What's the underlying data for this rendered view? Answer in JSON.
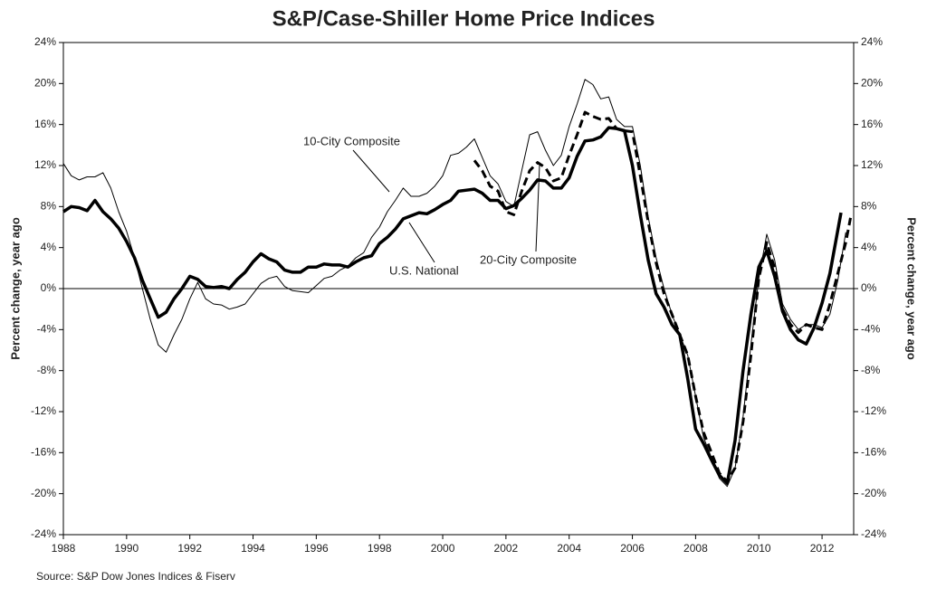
{
  "chart_data": {
    "type": "line",
    "title": "S&P/Case-Shiller Home Price Indices",
    "ylabel": "Percent change, year ago",
    "y2label": "Percent change, year ago",
    "source": "Source: S&P Dow Jones Indices & Fiserv",
    "xlim": [
      1988,
      2013
    ],
    "xticks": [
      1988,
      1990,
      1992,
      1994,
      1996,
      1998,
      2000,
      2002,
      2004,
      2006,
      2008,
      2010,
      2012
    ],
    "ylim": [
      -24,
      24
    ],
    "yticks": [
      {
        "value": -24,
        "label": "-24%"
      },
      {
        "value": -20,
        "label": "-20%"
      },
      {
        "value": -16,
        "label": "-16%"
      },
      {
        "value": -12,
        "label": "-12%"
      },
      {
        "value": -8,
        "label": "-8%"
      },
      {
        "value": -4,
        "label": "-4%"
      },
      {
        "value": 0,
        "label": "0%"
      },
      {
        "value": 4,
        "label": "4%"
      },
      {
        "value": 8,
        "label": "8%"
      },
      {
        "value": 12,
        "label": "12%"
      },
      {
        "value": 16,
        "label": "16%"
      },
      {
        "value": 20,
        "label": "20%"
      },
      {
        "value": 24,
        "label": "24%"
      }
    ],
    "y2lim": [
      -24,
      24
    ],
    "y2ticks": [
      {
        "value": -24,
        "label": "-24%"
      },
      {
        "value": -20,
        "label": "-20%"
      },
      {
        "value": -16,
        "label": "-16%"
      },
      {
        "value": -12,
        "label": "-12%"
      },
      {
        "value": -8,
        "label": "-8%"
      },
      {
        "value": -4,
        "label": "-4%"
      },
      {
        "value": 0,
        "label": "0%"
      },
      {
        "value": 4,
        "label": "4%"
      },
      {
        "value": 8,
        "label": "8%"
      },
      {
        "value": 12,
        "label": "12%"
      },
      {
        "value": 16,
        "label": "16%"
      },
      {
        "value": 20,
        "label": "20%"
      },
      {
        "value": 24,
        "label": "24%"
      }
    ],
    "series": [
      {
        "name": "U.S. National",
        "color": "#000000",
        "style": "thick",
        "x": [
          1988.0,
          1988.25,
          1988.5,
          1988.75,
          1989.0,
          1989.25,
          1989.5,
          1989.75,
          1990.0,
          1990.25,
          1990.5,
          1990.75,
          1991.0,
          1991.25,
          1991.5,
          1991.75,
          1992.0,
          1992.25,
          1992.5,
          1992.75,
          1993.0,
          1993.25,
          1993.5,
          1993.75,
          1994.0,
          1994.25,
          1994.5,
          1994.75,
          1995.0,
          1995.25,
          1995.5,
          1995.75,
          1996.0,
          1996.25,
          1996.5,
          1996.75,
          1997.0,
          1997.25,
          1997.5,
          1997.75,
          1998.0,
          1998.25,
          1998.5,
          1998.75,
          1999.0,
          1999.25,
          1999.5,
          1999.75,
          2000.0,
          2000.25,
          2000.5,
          2000.75,
          2001.0,
          2001.25,
          2001.5,
          2001.75,
          2002.0,
          2002.25,
          2002.5,
          2002.75,
          2003.0,
          2003.25,
          2003.5,
          2003.75,
          2004.0,
          2004.25,
          2004.5,
          2004.75,
          2005.0,
          2005.25,
          2005.5,
          2005.75,
          2006.0,
          2006.25,
          2006.5,
          2006.75,
          2007.0,
          2007.25,
          2007.5,
          2007.75,
          2008.0,
          2008.25,
          2008.5,
          2008.75,
          2009.0,
          2009.25,
          2009.5,
          2009.75,
          2010.0,
          2010.25,
          2010.5,
          2010.75,
          2011.0,
          2011.25,
          2011.5,
          2011.75,
          2012.0,
          2012.25,
          2012.6
        ],
        "values": [
          7.5,
          8.0,
          7.9,
          7.6,
          8.6,
          7.5,
          6.8,
          5.9,
          4.6,
          3.0,
          0.8,
          -1.0,
          -2.8,
          -2.3,
          -1.0,
          0.0,
          1.2,
          0.9,
          0.2,
          0.1,
          0.2,
          0.0,
          0.9,
          1.6,
          2.6,
          3.4,
          2.9,
          2.6,
          1.8,
          1.6,
          1.6,
          2.1,
          2.1,
          2.4,
          2.3,
          2.3,
          2.1,
          2.6,
          3.0,
          3.2,
          4.4,
          5.0,
          5.8,
          6.8,
          7.1,
          7.4,
          7.3,
          7.7,
          8.2,
          8.6,
          9.5,
          9.6,
          9.7,
          9.3,
          8.6,
          8.6,
          7.8,
          8.1,
          8.8,
          9.6,
          10.6,
          10.5,
          9.8,
          9.8,
          10.8,
          12.9,
          14.4,
          14.5,
          14.8,
          15.7,
          15.6,
          15.4,
          12.0,
          7.2,
          2.8,
          -0.5,
          -1.8,
          -3.5,
          -4.5,
          -8.8,
          -13.7,
          -15.1,
          -16.7,
          -18.2,
          -19.0,
          -14.8,
          -8.0,
          -2.5,
          2.1,
          3.7,
          1.2,
          -2.2,
          -4.0,
          -5.0,
          -5.4,
          -3.8,
          -1.4,
          1.5,
          7.4
        ]
      },
      {
        "name": "10-City Composite",
        "color": "#000000",
        "style": "thin",
        "x": [
          1988.0,
          1988.25,
          1988.5,
          1988.75,
          1989.0,
          1989.25,
          1989.5,
          1989.75,
          1990.0,
          1990.25,
          1990.5,
          1990.75,
          1991.0,
          1991.25,
          1991.5,
          1991.75,
          1992.0,
          1992.25,
          1992.5,
          1992.75,
          1993.0,
          1993.25,
          1993.5,
          1993.75,
          1994.0,
          1994.25,
          1994.5,
          1994.75,
          1995.0,
          1995.25,
          1995.5,
          1995.75,
          1996.0,
          1996.25,
          1996.5,
          1996.75,
          1997.0,
          1997.25,
          1997.5,
          1997.75,
          1998.0,
          1998.25,
          1998.5,
          1998.75,
          1999.0,
          1999.25,
          1999.5,
          1999.75,
          2000.0,
          2000.25,
          2000.5,
          2000.75,
          2001.0,
          2001.25,
          2001.5,
          2001.75,
          2002.0,
          2002.25,
          2002.5,
          2002.75,
          2003.0,
          2003.25,
          2003.5,
          2003.75,
          2004.0,
          2004.25,
          2004.5,
          2004.75,
          2005.0,
          2005.25,
          2005.5,
          2005.75,
          2006.0,
          2006.25,
          2006.5,
          2006.75,
          2007.0,
          2007.25,
          2007.5,
          2007.75,
          2008.0,
          2008.25,
          2008.5,
          2008.75,
          2009.0,
          2009.25,
          2009.5,
          2009.75,
          2010.0,
          2010.25,
          2010.5,
          2010.75,
          2011.0,
          2011.25,
          2011.5,
          2011.75,
          2012.0,
          2012.25,
          2012.5,
          2012.75
        ],
        "values": [
          12.2,
          11.0,
          10.6,
          10.9,
          10.9,
          11.3,
          9.8,
          7.5,
          5.6,
          3.0,
          0.0,
          -3.0,
          -5.5,
          -6.2,
          -4.5,
          -3.0,
          -1.0,
          0.6,
          -1.0,
          -1.5,
          -1.6,
          -2.0,
          -1.8,
          -1.5,
          -0.5,
          0.5,
          1.0,
          1.2,
          0.2,
          -0.2,
          -0.3,
          -0.4,
          0.3,
          1.0,
          1.2,
          1.8,
          2.2,
          3.0,
          3.5,
          5.0,
          6.0,
          7.5,
          8.6,
          9.8,
          9.0,
          9.0,
          9.3,
          10.0,
          11.0,
          13.0,
          13.2,
          13.8,
          14.6,
          12.8,
          11.0,
          10.2,
          8.5,
          8.0,
          11.5,
          15.0,
          15.3,
          13.5,
          12.0,
          13.0,
          15.8,
          18.0,
          20.4,
          19.9,
          18.5,
          18.7,
          16.5,
          15.8,
          15.8,
          12.0,
          7.0,
          3.0,
          0.0,
          -2.5,
          -4.5,
          -6.5,
          -10.5,
          -14.5,
          -16.5,
          -18.5,
          -19.3,
          -17.5,
          -12.5,
          -5.5,
          1.0,
          5.3,
          2.8,
          -1.5,
          -3.0,
          -4.0,
          -3.5,
          -3.5,
          -3.8,
          -2.5,
          0.8,
          5.5
        ]
      },
      {
        "name": "20-City Composite",
        "color": "#000000",
        "style": "dashed",
        "x": [
          2001.0,
          2001.25,
          2001.5,
          2001.75,
          2002.0,
          2002.25,
          2002.5,
          2002.75,
          2003.0,
          2003.25,
          2003.5,
          2003.75,
          2004.0,
          2004.25,
          2004.5,
          2004.75,
          2005.0,
          2005.25,
          2005.5,
          2005.75,
          2006.0,
          2006.25,
          2006.5,
          2006.75,
          2007.0,
          2007.25,
          2007.5,
          2007.75,
          2008.0,
          2008.25,
          2008.5,
          2008.75,
          2009.0,
          2009.25,
          2009.5,
          2009.75,
          2010.0,
          2010.25,
          2010.5,
          2010.75,
          2011.0,
          2011.25,
          2011.5,
          2011.75,
          2012.0,
          2012.25,
          2012.5,
          2012.75,
          2012.9
        ],
        "values": [
          12.5,
          11.5,
          10.0,
          9.5,
          7.5,
          7.2,
          9.5,
          11.5,
          12.3,
          11.8,
          10.5,
          10.8,
          13.0,
          15.0,
          17.2,
          16.8,
          16.5,
          16.6,
          15.6,
          15.4,
          15.3,
          11.0,
          6.5,
          2.5,
          -0.5,
          -2.5,
          -4.5,
          -6.5,
          -10.5,
          -14.0,
          -16.0,
          -18.0,
          -18.8,
          -17.5,
          -13.0,
          -6.5,
          1.0,
          4.5,
          2.0,
          -2.0,
          -3.5,
          -4.3,
          -3.5,
          -3.8,
          -4.0,
          -1.5,
          1.5,
          4.5,
          6.9
        ]
      }
    ]
  }
}
